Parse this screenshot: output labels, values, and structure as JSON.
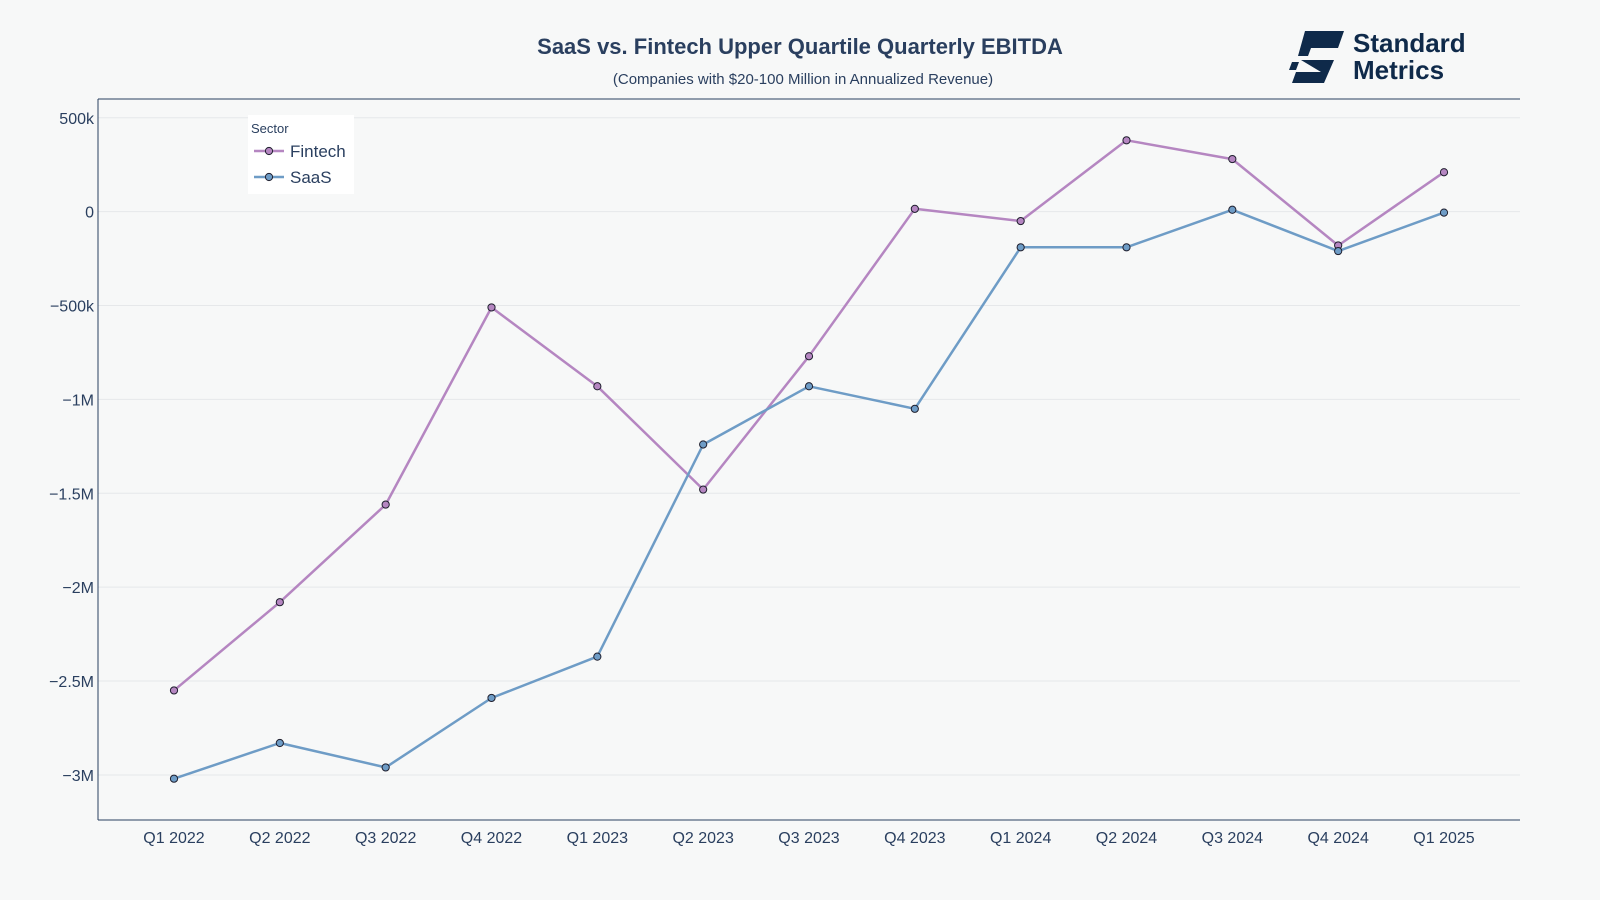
{
  "chart_data": {
    "type": "line",
    "title": "SaaS vs. Fintech Upper Quartile Quarterly EBITDA",
    "subtitle": "(Companies with $20-100 Million in Annualized Revenue)",
    "categories": [
      "Q1 2022",
      "Q2 2022",
      "Q3 2022",
      "Q4 2022",
      "Q1 2023",
      "Q2 2023",
      "Q3 2023",
      "Q4 2023",
      "Q1 2024",
      "Q2 2024",
      "Q3 2024",
      "Q4 2024",
      "Q1 2025"
    ],
    "ylim": [
      -3240000,
      600000
    ],
    "yticks": [
      500000,
      0,
      -500000,
      -1000000,
      -1500000,
      -2000000,
      -2500000,
      -3000000
    ],
    "ytick_labels": [
      "500k",
      "0",
      "−500k",
      "−1M",
      "−1.5M",
      "−2M",
      "−2.5M",
      "−3M"
    ],
    "grid": true,
    "legend": {
      "title": "Sector",
      "position": "top-left"
    },
    "series": [
      {
        "name": "Fintech",
        "color": "#b586c1",
        "values": [
          -2550000,
          -2080000,
          -1560000,
          -510000,
          -930000,
          -1480000,
          -770000,
          15000,
          -50000,
          380000,
          280000,
          -180000,
          210000
        ]
      },
      {
        "name": "SaaS",
        "color": "#6e9cc6",
        "values": [
          -3020000,
          -2830000,
          -2960000,
          -2590000,
          -2370000,
          -1240000,
          -930000,
          -1050000,
          -190000,
          -190000,
          10000,
          -210000,
          -5000
        ]
      }
    ]
  },
  "logo": {
    "line1": "Standard",
    "line2": "Metrics"
  }
}
